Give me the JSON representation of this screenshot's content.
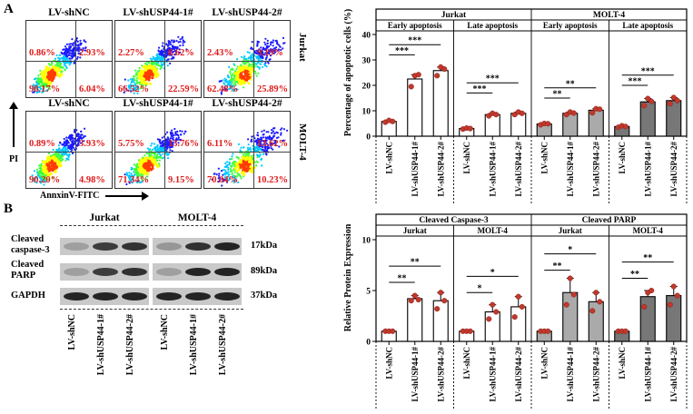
{
  "panel_a": {
    "letter": "A",
    "columns": [
      "LV-shNC",
      "LV-shUSP44-1#",
      "LV-shUSP44-2#"
    ],
    "rows": [
      {
        "label": "Jurkat",
        "quadrants": [
          [
            "0.86%",
            "2.93%",
            "90.17%",
            "6.04%"
          ],
          [
            "2.27%",
            "8.62%",
            "66.52%",
            "22.59%"
          ],
          [
            "2.43%",
            "9.19%",
            "62.48%",
            "25.89%"
          ]
        ]
      },
      {
        "label": "MOLT-4",
        "quadrants": [
          [
            "0.89%",
            "3.93%",
            "90.20%",
            "4.98%"
          ],
          [
            "5.75%",
            "13.76%",
            "71.34%",
            "9.15%"
          ],
          [
            "6.11%",
            "13.62%",
            "70.04%",
            "10.23%"
          ]
        ]
      }
    ],
    "y_axis": "PI",
    "x_axis": "AnnxinV-FITC",
    "density_colors": [
      "#1a1aff",
      "#00c8ff",
      "#3cff3c",
      "#ffff00",
      "#ff3c00"
    ]
  },
  "panel_b": {
    "letter": "B",
    "groups": [
      "Jurkat",
      "MOLT-4"
    ],
    "proteins": [
      {
        "label_line1": "Cleaved",
        "label_line2": "caspase-3",
        "kda": "17kDa"
      },
      {
        "label_line1": "Cleaved",
        "label_line2": "PARP",
        "kda": "89kDa"
      },
      {
        "label_line1": "GAPDH",
        "label_line2": "",
        "kda": "37kDa"
      }
    ],
    "lanes": [
      "LV-shNC",
      "LV-shUSP44-1#",
      "LV-shUSP44-2#",
      "LV-shNC",
      "LV-shUSP44-1#",
      "LV-shUSP44-2#"
    ],
    "band_intensity": [
      [
        0.3,
        0.8,
        0.85,
        0.35,
        0.85,
        0.9
      ],
      [
        0.3,
        0.8,
        0.85,
        0.3,
        0.9,
        0.9
      ],
      [
        0.9,
        0.9,
        0.9,
        0.9,
        0.9,
        0.9
      ]
    ]
  },
  "chart_data": [
    {
      "type": "bar",
      "ylabel": "Percentage of apoptotic cells (%)",
      "ylim": [
        0,
        40
      ],
      "yticks": [
        0,
        10,
        20,
        30,
        40
      ],
      "top_groups": [
        "Jurkat",
        "MOLT-4"
      ],
      "sub_groups": [
        "Early apoptosis",
        "Late apoptosis",
        "Early apoptosis",
        "Late apoptosis"
      ],
      "categories": [
        "LV-shNC",
        "LV-shUSP44-1#",
        "LV-shUSP44-2#"
      ],
      "series": [
        {
          "name": "Jurkat Early apoptosis",
          "values": [
            5.8,
            22.5,
            25.8
          ],
          "points": [
            [
              5.5,
              6.2,
              5.8
            ],
            [
              19.5,
              23.8,
              24.2
            ],
            [
              23.8,
              27.2,
              26.4
            ]
          ],
          "fill": "#ffffff"
        },
        {
          "name": "Jurkat Late apoptosis",
          "values": [
            3.0,
            8.5,
            9.0
          ],
          "points": [
            [
              2.8,
              3.2,
              3.0
            ],
            [
              8.0,
              9.0,
              8.5
            ],
            [
              8.5,
              9.5,
              9.0
            ]
          ],
          "fill": "#ffffff"
        },
        {
          "name": "MOLT-4 Early apoptosis",
          "values": [
            4.8,
            9.0,
            10.2
          ],
          "points": [
            [
              4.5,
              5.0,
              4.9
            ],
            [
              8.5,
              9.5,
              9.1
            ],
            [
              9.2,
              10.8,
              10.6
            ]
          ],
          "fill": "#aaaaaa"
        },
        {
          "name": "MOLT-4 Late apoptosis",
          "values": [
            3.8,
            13.5,
            14.0
          ],
          "points": [
            [
              3.5,
              4.1,
              3.8
            ],
            [
              12.0,
              14.8,
              13.7
            ],
            [
              12.8,
              15.2,
              14.0
            ]
          ],
          "fill": "#777777"
        }
      ],
      "significance": [
        [
          {
            "from": 0,
            "to": 1,
            "label": "***",
            "y": 32
          },
          {
            "from": 0,
            "to": 2,
            "label": "***",
            "y": 36
          }
        ],
        [
          {
            "from": 0,
            "to": 1,
            "label": "***",
            "y": 17
          },
          {
            "from": 0,
            "to": 2,
            "label": "***",
            "y": 21
          }
        ],
        [
          {
            "from": 0,
            "to": 1,
            "label": "**",
            "y": 15
          },
          {
            "from": 0,
            "to": 2,
            "label": "**",
            "y": 19
          }
        ],
        [
          {
            "from": 0,
            "to": 1,
            "label": "***",
            "y": 20
          },
          {
            "from": 0,
            "to": 2,
            "label": "***",
            "y": 24
          }
        ]
      ]
    },
    {
      "type": "bar",
      "ylabel": "Relative Protein Expression",
      "ylim": [
        0,
        10
      ],
      "yticks": [
        0,
        5,
        10
      ],
      "top_groups": [
        "Cleaved Caspase-3",
        "Cleaved PARP"
      ],
      "sub_groups": [
        "Jurkat",
        "MOLT-4",
        "Jurkat",
        "MOLT-4"
      ],
      "categories": [
        "LV-shNC",
        "LV-shUSP44-1#",
        "LV-shUSP44-2#"
      ],
      "series": [
        {
          "name": "Caspase-3 Jurkat",
          "values": [
            1.0,
            4.2,
            4.0
          ],
          "points": [
            [
              1.0,
              1.0,
              1.0
            ],
            [
              4.0,
              4.5,
              4.1
            ],
            [
              3.2,
              4.8,
              4.0
            ]
          ],
          "fill": "#ffffff"
        },
        {
          "name": "Caspase-3 MOLT-4",
          "values": [
            1.0,
            2.9,
            3.4
          ],
          "points": [
            [
              1.0,
              1.0,
              1.0
            ],
            [
              2.2,
              3.6,
              2.9
            ],
            [
              2.4,
              4.4,
              3.4
            ]
          ],
          "fill": "#ffffff"
        },
        {
          "name": "PARP Jurkat",
          "values": [
            1.0,
            4.8,
            3.9
          ],
          "points": [
            [
              1.0,
              1.0,
              1.0
            ],
            [
              3.6,
              6.2,
              4.6
            ],
            [
              3.0,
              4.8,
              3.9
            ]
          ],
          "fill": "#aaaaaa"
        },
        {
          "name": "PARP MOLT-4",
          "values": [
            1.0,
            4.4,
            4.5
          ],
          "points": [
            [
              1.0,
              1.0,
              1.0
            ],
            [
              3.4,
              4.8,
              5.0
            ],
            [
              3.6,
              5.4,
              4.5
            ]
          ],
          "fill": "#777777"
        }
      ],
      "significance": [
        [
          {
            "from": 0,
            "to": 1,
            "label": "**",
            "y": 5.8
          },
          {
            "from": 0,
            "to": 2,
            "label": "**",
            "y": 7.4
          }
        ],
        [
          {
            "from": 0,
            "to": 1,
            "label": "*",
            "y": 4.8
          },
          {
            "from": 0,
            "to": 2,
            "label": "*",
            "y": 6.4
          }
        ],
        [
          {
            "from": 0,
            "to": 1,
            "label": "**",
            "y": 7.0
          },
          {
            "from": 0,
            "to": 2,
            "label": "*",
            "y": 8.6
          }
        ],
        [
          {
            "from": 0,
            "to": 1,
            "label": "**",
            "y": 6.2
          },
          {
            "from": 0,
            "to": 2,
            "label": "**",
            "y": 7.8
          }
        ]
      ]
    }
  ]
}
